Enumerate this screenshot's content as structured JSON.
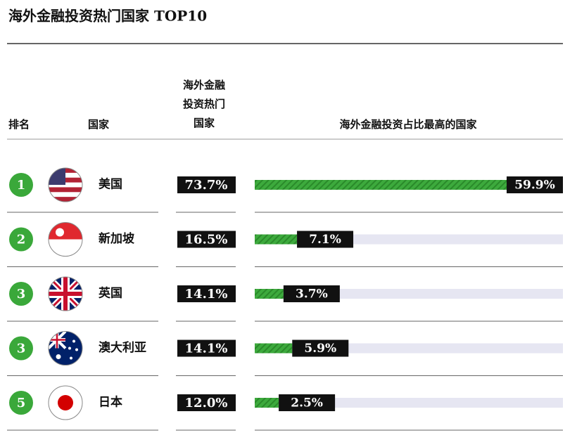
{
  "title": "海外金融投资热门国家 TOP10",
  "table": {
    "headers": {
      "rank": "排名",
      "country": "国家",
      "share": [
        "海外金融",
        "投资热门",
        "国家"
      ],
      "top": "海外金融投资占比最高的国家"
    },
    "rows": [
      {
        "rank": "1",
        "country": "美国",
        "share": "73.7%",
        "top_value": 59.9,
        "top_label": "59.9%"
      },
      {
        "rank": "2",
        "country": "新加坡",
        "share": "16.5%",
        "top_value": 7.1,
        "top_label": "7.1%"
      },
      {
        "rank": "3",
        "country": "英国",
        "share": "14.1%",
        "top_value": 3.7,
        "top_label": "3.7%"
      },
      {
        "rank": "3",
        "country": "澳大利亚",
        "share": "14.1%",
        "top_value": 5.9,
        "top_label": "5.9%"
      },
      {
        "rank": "5",
        "country": "日本",
        "share": "12.0%",
        "top_value": 2.5,
        "top_label": "2.5%"
      }
    ]
  }
}
